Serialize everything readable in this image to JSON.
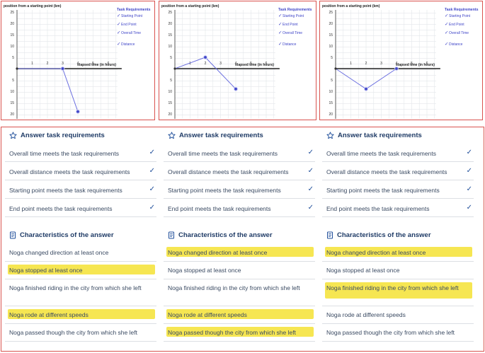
{
  "graphs": [
    {
      "id": "graph-1",
      "y_title": "position from a starting point (km)",
      "x_title": "elapsed time (in hours)",
      "y_ticks_up": [
        "25",
        "20",
        "15",
        "10",
        "5"
      ],
      "y_ticks_down": [
        "5",
        "10",
        "15",
        "20"
      ],
      "x_ticks": [
        "1",
        "2",
        "3",
        "4",
        "5",
        "6"
      ],
      "points": [
        [
          0,
          0
        ],
        [
          3,
          0
        ],
        [
          4,
          -19
        ]
      ],
      "legend": {
        "title": "Task Requirements",
        "items": [
          "Starting Point",
          "End Point",
          "Overall Time",
          "Distance"
        ]
      }
    },
    {
      "id": "graph-2",
      "y_title": "position from a starting point (km)",
      "x_title": "elapsed time (in hours)",
      "y_ticks_up": [
        "25",
        "20",
        "15",
        "10",
        "5"
      ],
      "y_ticks_down": [
        "5",
        "10",
        "15",
        "20"
      ],
      "x_ticks": [
        "1",
        "2",
        "3",
        "4",
        "5",
        "6"
      ],
      "points": [
        [
          0,
          0
        ],
        [
          2,
          5
        ],
        [
          4,
          -9
        ]
      ],
      "legend": {
        "title": "Task Requirements",
        "items": [
          "Starting Point",
          "End Point",
          "Overall Time",
          "Distance"
        ]
      }
    },
    {
      "id": "graph-3",
      "y_title": "position from a starting point (km)",
      "x_title": "elapsed time (in hours)",
      "y_ticks_up": [
        "25",
        "20",
        "15",
        "10",
        "5"
      ],
      "y_ticks_down": [
        "5",
        "10",
        "15",
        "20"
      ],
      "x_ticks": [
        "1",
        "2",
        "3",
        "4",
        "5",
        "6"
      ],
      "points": [
        [
          0,
          0
        ],
        [
          2,
          -9
        ],
        [
          4,
          0
        ]
      ],
      "legend": {
        "title": "Task Requirements",
        "items": [
          "Starting Point",
          "End Point",
          "Overall Time",
          "Distance"
        ]
      }
    }
  ],
  "answers": [
    {
      "requirements_title": "Answer task requirements",
      "requirements": [
        "Overall time meets the task requirements",
        "Overall distance meets the task requirements",
        "Starting point meets the task requirements",
        "End point meets the task requirements"
      ],
      "characteristics_title": "Characteristics of the answer",
      "characteristics": [
        {
          "text": "Noga changed direction at least once",
          "highlighted": false
        },
        {
          "text": "Noga stopped at least once",
          "highlighted": true
        },
        {
          "text": "Noga finished riding in the city from which she left",
          "highlighted": false
        },
        {
          "text": "Noga rode at different speeds",
          "highlighted": true
        },
        {
          "text": "Noga passed though the city from which she left",
          "highlighted": false
        }
      ]
    },
    {
      "requirements_title": "Answer task requirements",
      "requirements": [
        "Overall time meets the task requirements",
        "Overall distance meets the task requirements",
        "Starting point meets the task requirements",
        "End point meets the task requirements"
      ],
      "characteristics_title": "Characteristics of the answer",
      "characteristics": [
        {
          "text": "Noga changed direction at least once",
          "highlighted": true
        },
        {
          "text": "Noga stopped at least once",
          "highlighted": false
        },
        {
          "text": "Noga finished riding in the city from which she left",
          "highlighted": false
        },
        {
          "text": "Noga rode at different speeds",
          "highlighted": true
        },
        {
          "text": "Noga passed though the city from which she left",
          "highlighted": true
        }
      ]
    },
    {
      "requirements_title": "Answer task requirements",
      "requirements": [
        "Overall time meets the task requirements",
        "Overall distance meets the task requirements",
        "Starting point meets the task requirements",
        "End point meets the task requirements"
      ],
      "characteristics_title": "Characteristics of the answer",
      "characteristics": [
        {
          "text": "Noga changed direction at least once",
          "highlighted": true
        },
        {
          "text": "Noga stopped at least once",
          "highlighted": false
        },
        {
          "text": "Noga finished riding in the city from which she left",
          "highlighted": true
        },
        {
          "text": "Noga rode at different speeds",
          "highlighted": false
        },
        {
          "text": "Noga passed though the city from which she left",
          "highlighted": false
        }
      ]
    }
  ],
  "icons": {
    "requirements": "star-icon",
    "characteristics": "notebook-icon",
    "check": "check-icon"
  },
  "colors": {
    "panel_border": "#d9534f",
    "line": "#6b6fe0",
    "legend_text": "#3f45c8",
    "highlight": "#f4e234",
    "accent": "#1f4e9a"
  }
}
